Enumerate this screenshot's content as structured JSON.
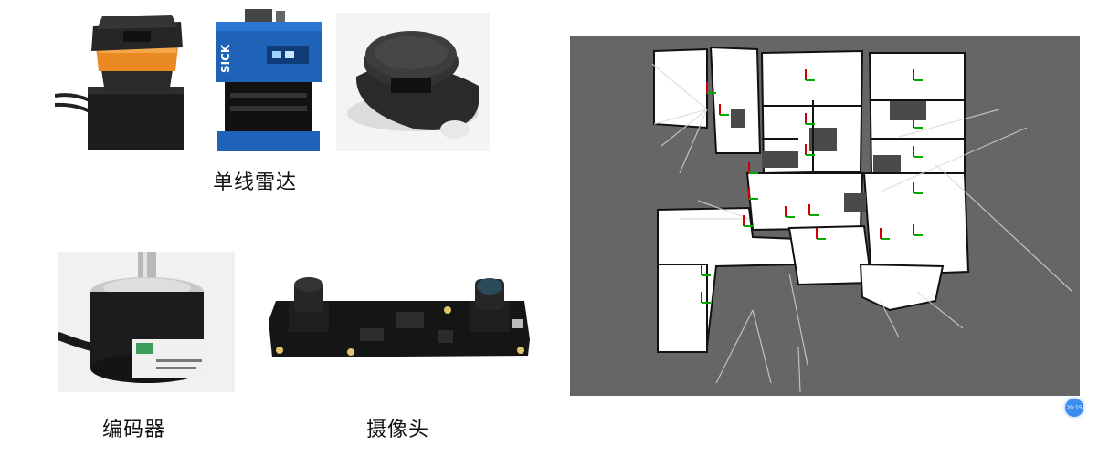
{
  "captions": {
    "lidar": "单线雷达",
    "encoder": "编码器",
    "camera": "摄像头"
  },
  "lidar_brand_text": "SICK",
  "map_badge": "20:15",
  "colors": {
    "map_background": "#666666",
    "free_space": "#ffffff",
    "badge": "#3b8ef0"
  }
}
